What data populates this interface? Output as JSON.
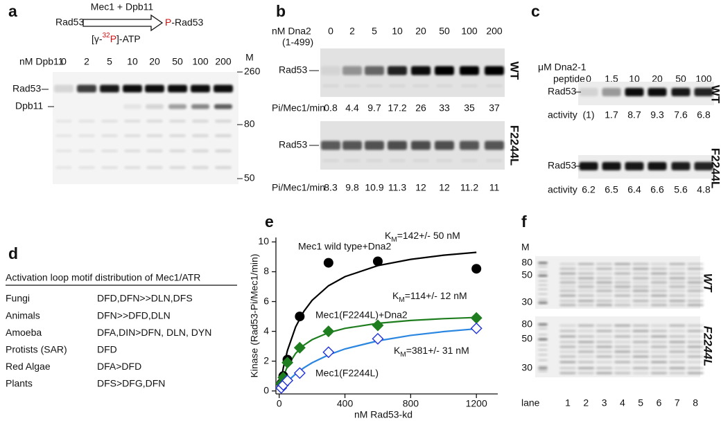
{
  "panel_labels": [
    "a",
    "b",
    "c",
    "d",
    "e",
    "f"
  ],
  "panel_a": {
    "scheme": {
      "substrate": "Rad53",
      "enzymes": "Mec1 + Dpb11",
      "atp": [
        "[γ-",
        "32",
        "P",
        "]-ATP"
      ],
      "product": [
        "P",
        "-Rad53"
      ]
    },
    "titration_label": "nM Dpb11",
    "concentrations": [
      0,
      2,
      5,
      10,
      20,
      50,
      100,
      200
    ],
    "marker_label": "M",
    "markers": [
      260,
      80,
      50
    ],
    "bands": [
      "Rad53",
      "Dpb11"
    ]
  },
  "panel_b": {
    "titration_label": "nM Dna2",
    "construct": "(1-499)",
    "concentrations": [
      0,
      2,
      5,
      10,
      20,
      50,
      100,
      200
    ],
    "gels": [
      {
        "band": "Rad53",
        "strain": "WT",
        "rate_label": "Pi/Mec1/min",
        "rates": [
          0.8,
          4.4,
          9.7,
          17.2,
          26,
          33,
          35,
          37
        ]
      },
      {
        "band": "Rad53",
        "strain": "F2244L",
        "rate_label": "Pi/Mec1/min",
        "rates": [
          8.3,
          9.8,
          10.9,
          11.3,
          12,
          12,
          11.2,
          11
        ]
      }
    ]
  },
  "panel_c": {
    "titration_label": "μM Dna2-1",
    "titration_sublabel": "peptide",
    "concentrations": [
      0,
      1.5,
      10,
      20,
      50,
      100
    ],
    "gels": [
      {
        "band": "Rad53",
        "strain": "WT",
        "activity_label": "activity",
        "activity": [
          "(1)",
          1.7,
          8.7,
          9.3,
          7.6,
          6.8
        ]
      },
      {
        "band": "Rad53",
        "strain": "F2244L",
        "activity_label": "activity",
        "activity": [
          6.2,
          6.5,
          6.4,
          6.6,
          5.6,
          4.8
        ]
      }
    ]
  },
  "panel_d": {
    "table": {
      "title": "Activation loop motif distribution of Mec1/ATR",
      "rows": [
        [
          "Fungi",
          "DFD,DFN>>DLN,DFS"
        ],
        [
          "Animals",
          "DFN>>DFD,DLN"
        ],
        [
          "Amoeba",
          "DFA,DIN>DFN, DLN, DYN"
        ],
        [
          "Protists (SAR)",
          "DFD"
        ],
        [
          "Red Algae",
          "DFA>DFD"
        ],
        [
          "Plants",
          "DFS>DFG,DFN"
        ]
      ]
    }
  },
  "chart_data": {
    "type": "scatter",
    "x_label": "nM Rad53-kd",
    "y_label": "Kinase (Rad53-Pi/Mec1/min)",
    "xlim": [
      -20,
      1330
    ],
    "ylim": [
      -0.2,
      10.3
    ],
    "xticks": [
      0,
      400,
      800,
      1200
    ],
    "yticks": [
      0,
      2,
      4,
      6,
      8,
      10
    ],
    "series": [
      {
        "name": "Mec1 wild type+Dna2",
        "color": "#000000",
        "line_color": "#000000",
        "marker": "circle",
        "filled": true,
        "x": [
          12.5,
          25,
          50,
          125,
          300,
          600,
          1200
        ],
        "values": [
          0.5,
          1.0,
          2.1,
          5.0,
          8.6,
          8.7,
          8.2
        ],
        "fit": {
          "x": [
            0,
            25,
            50,
            100,
            150,
            200,
            300,
            400,
            600,
            800,
            1000,
            1200
          ],
          "values": [
            0,
            1.56,
            2.71,
            4.3,
            5.34,
            6.08,
            7.06,
            7.67,
            8.41,
            8.83,
            9.11,
            9.3
          ]
        },
        "km": {
          "symbol": "K",
          "subscript": "M",
          "text": "=142+/- 50 nM"
        }
      },
      {
        "name": "Mec1(F2244L)+Dna2",
        "color": "#1e7d1e",
        "line_color": "#1e7d1e",
        "marker": "diamond",
        "filled": true,
        "x": [
          12.5,
          25,
          50,
          125,
          300,
          600,
          1200
        ],
        "values": [
          0.5,
          0.9,
          1.9,
          2.9,
          4.0,
          4.4,
          4.9
        ],
        "fit": {
          "x": [
            0,
            25,
            50,
            100,
            150,
            200,
            300,
            400,
            600,
            800,
            1000,
            1200
          ],
          "values": [
            0,
            0.97,
            1.65,
            2.52,
            3.07,
            3.44,
            3.91,
            4.2,
            4.54,
            4.73,
            4.85,
            4.93
          ]
        },
        "km": {
          "symbol": "K",
          "subscript": "M",
          "text": "=114+/- 12 nM"
        }
      },
      {
        "name": "Mec1(F2244L)",
        "color": "#2233d6",
        "line_color": "#2a86e0",
        "marker": "diamond",
        "filled": false,
        "x": [
          12.5,
          25,
          50,
          125,
          300,
          600,
          1200
        ],
        "values": [
          0.2,
          0.4,
          0.7,
          1.2,
          2.6,
          3.5,
          4.2
        ],
        "fit": {
          "x": [
            0,
            25,
            50,
            100,
            150,
            200,
            300,
            400,
            600,
            800,
            1000,
            1200
          ],
          "values": [
            0,
            0.34,
            0.64,
            1.14,
            1.55,
            1.89,
            2.42,
            2.82,
            3.36,
            3.73,
            3.98,
            4.17
          ]
        },
        "km": {
          "symbol": "K",
          "subscript": "M",
          "text": "=381+/- 31 nM"
        }
      }
    ]
  },
  "panel_f": {
    "marker_label": "M",
    "gels": [
      {
        "strain": "WT",
        "markers": [
          80,
          50,
          30
        ]
      },
      {
        "strain": "F2244L",
        "markers": [
          80,
          50,
          30
        ]
      }
    ],
    "lane_label": "lane",
    "lanes": [
      1,
      2,
      3,
      4,
      5,
      6,
      7,
      8
    ]
  }
}
